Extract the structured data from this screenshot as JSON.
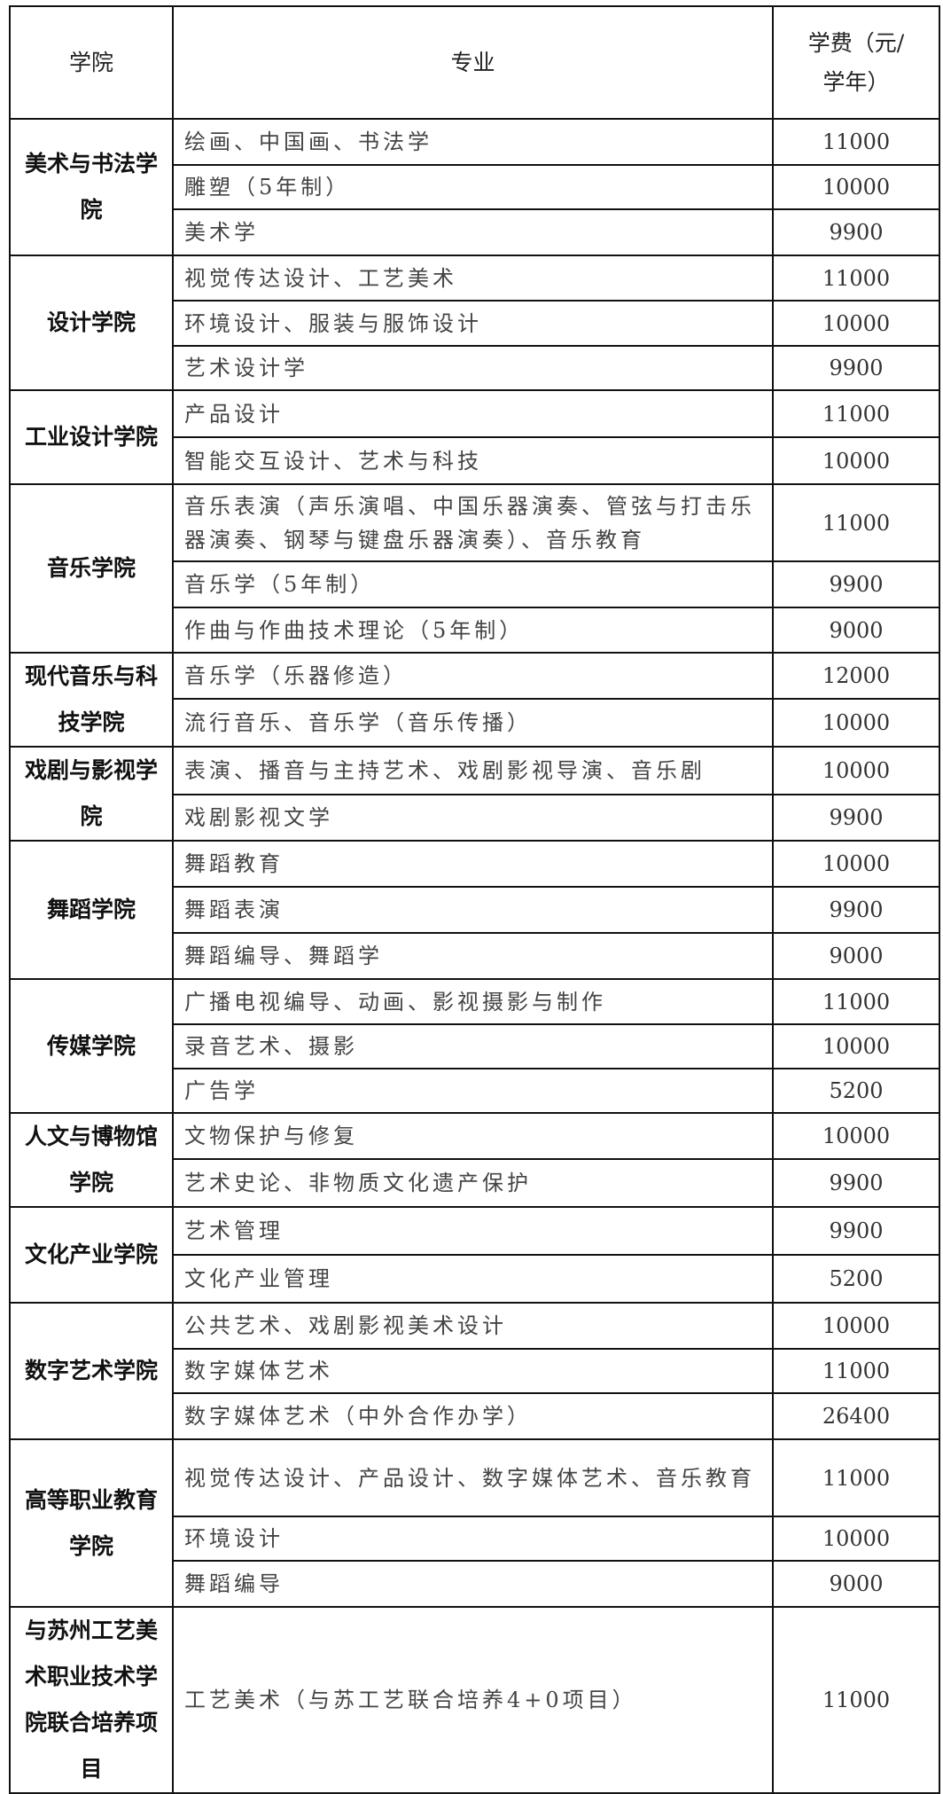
{
  "headers": {
    "college": "学院",
    "major": "专业",
    "fee": "学费（元/学年）"
  },
  "colleges": [
    {
      "name": "美术与书法学院",
      "rows": [
        [
          "绘画、中国画、书法学",
          "11000"
        ],
        [
          "雕塑（5年制）",
          "10000"
        ],
        [
          "美术学",
          "9900"
        ]
      ]
    },
    {
      "name": "设计学院",
      "rows": [
        [
          "视觉传达设计、工艺美术",
          "11000"
        ],
        [
          "环境设计、服装与服饰设计",
          "10000"
        ],
        [
          "艺术设计学",
          "9900"
        ]
      ]
    },
    {
      "name": "工业设计学院",
      "rows": [
        [
          "产品设计",
          "11000"
        ],
        [
          "智能交互设计、艺术与科技",
          "10000"
        ]
      ]
    },
    {
      "name": "音乐学院",
      "rows": [
        [
          "音乐表演（声乐演唱、中国乐器演奏、管弦与打击乐器演奏、钢琴与键盘乐器演奏）、音乐教育",
          "11000"
        ],
        [
          "音乐学（5年制）",
          "9900"
        ],
        [
          "作曲与作曲技术理论（5年制）",
          "9000"
        ]
      ]
    },
    {
      "name": "现代音乐与科技学院",
      "rows": [
        [
          "音乐学（乐器修造）",
          "12000"
        ],
        [
          "流行音乐、音乐学（音乐传播）",
          "10000"
        ]
      ]
    },
    {
      "name": "戏剧与影视学院",
      "rows": [
        [
          "表演、播音与主持艺术、戏剧影视导演、音乐剧",
          "10000"
        ],
        [
          "戏剧影视文学",
          "9900"
        ]
      ]
    },
    {
      "name": "舞蹈学院",
      "rows": [
        [
          "舞蹈教育",
          "10000"
        ],
        [
          "舞蹈表演",
          "9900"
        ],
        [
          "舞蹈编导、舞蹈学",
          "9000"
        ]
      ]
    },
    {
      "name": "传媒学院",
      "rows": [
        [
          "广播电视编导、动画、影视摄影与制作",
          "11000"
        ],
        [
          "录音艺术、摄影",
          "10000"
        ],
        [
          "广告学",
          "5200"
        ]
      ]
    },
    {
      "name": "人文与博物馆学院",
      "rows": [
        [
          "文物保护与修复",
          "10000"
        ],
        [
          "艺术史论、非物质文化遗产保护",
          "9900"
        ]
      ]
    },
    {
      "name": "文化产业学院",
      "rows": [
        [
          "艺术管理",
          "9900"
        ],
        [
          "文化产业管理",
          "5200"
        ]
      ]
    },
    {
      "name": "数字艺术学院",
      "rows": [
        [
          "公共艺术、戏剧影视美术设计",
          "10000"
        ],
        [
          "数字媒体艺术",
          "11000"
        ],
        [
          "数字媒体艺术（中外合作办学）",
          "26400"
        ]
      ]
    },
    {
      "name": "高等职业教育学院",
      "rows": [
        [
          "视觉传达设计、产品设计、数字媒体艺术、音乐教育",
          "11000"
        ],
        [
          "环境设计",
          "10000"
        ],
        [
          "舞蹈编导",
          "9000"
        ]
      ]
    },
    {
      "name": "与苏州工艺美术职业技术学院联合培养项目",
      "rows": [
        [
          "工艺美术（与苏工艺联合培养4+0项目）",
          "11000"
        ]
      ]
    }
  ]
}
